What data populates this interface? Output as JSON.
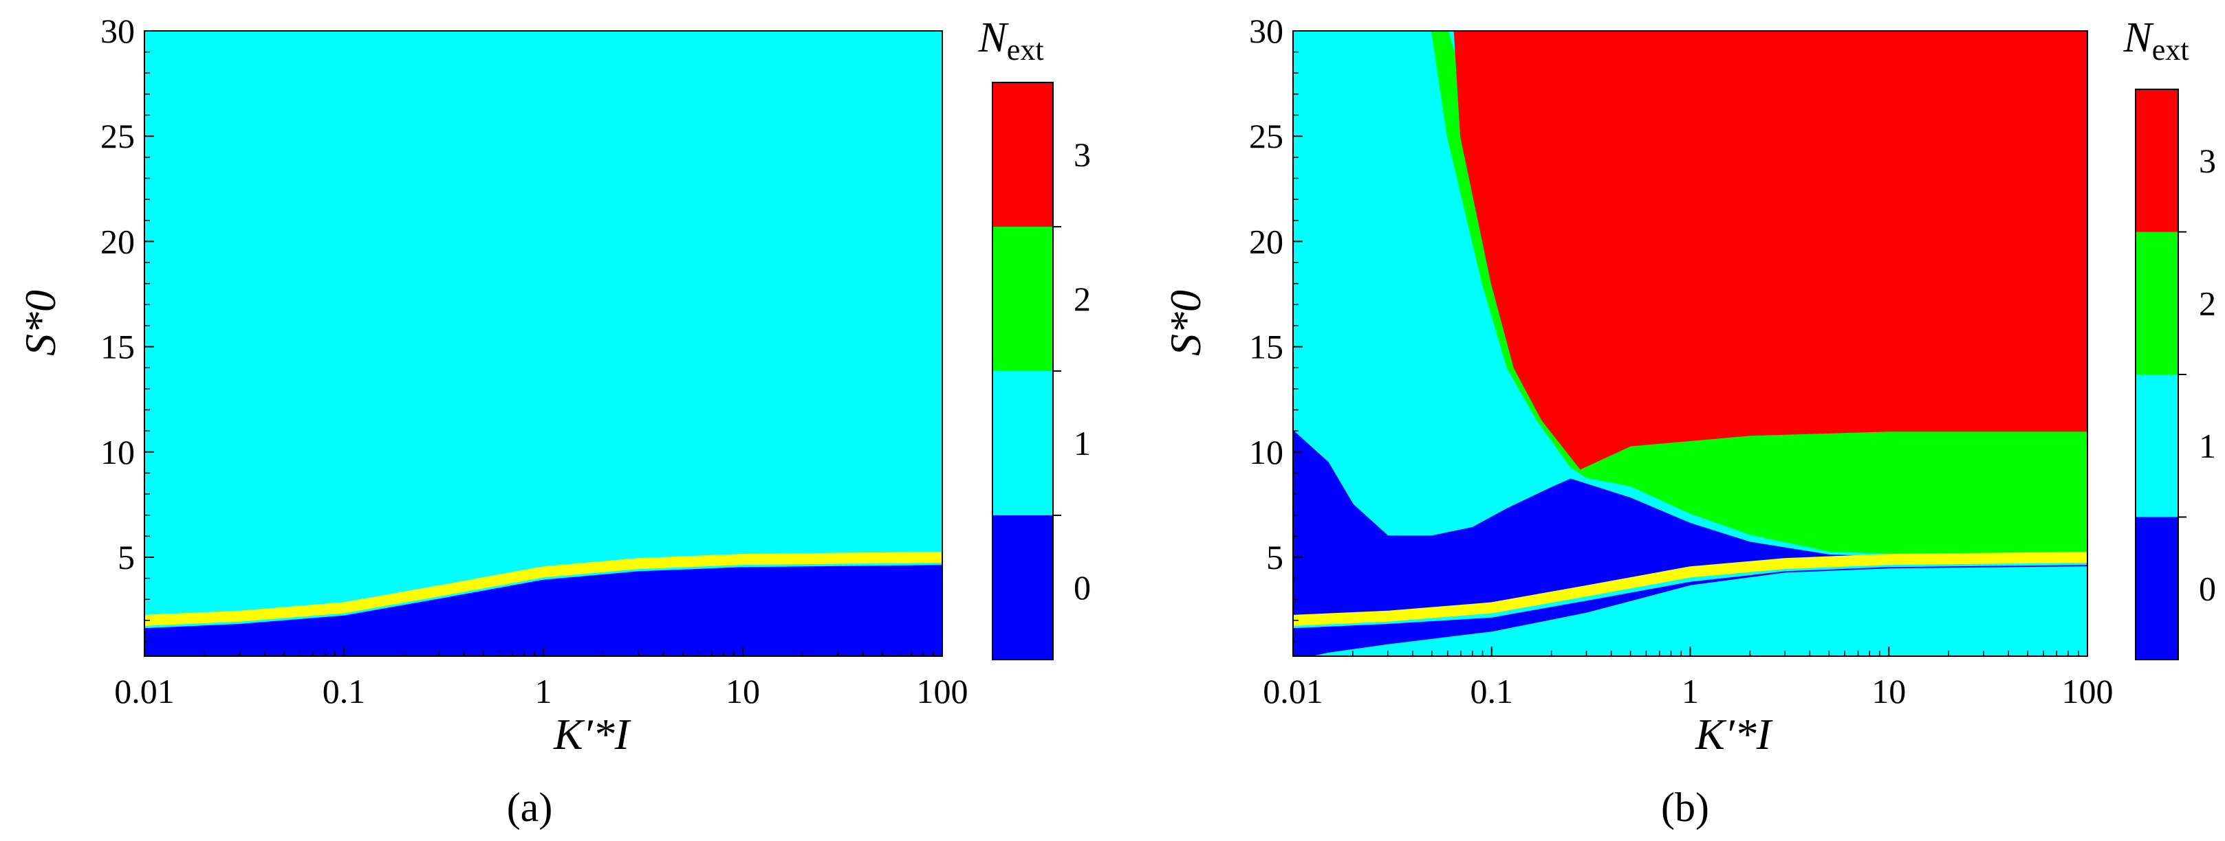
{
  "chart_data": [
    {
      "type": "heatmap",
      "panel_label": "(a)",
      "x_ticks": [
        "0.01",
        "0.1",
        "1",
        "10",
        "100"
      ],
      "y_ticks": [
        "5",
        "10",
        "15",
        "20",
        "25",
        "30"
      ],
      "x_scale": "log",
      "xlim": [
        0.01,
        100
      ],
      "ylim": [
        0.3,
        30
      ],
      "xlabel": "K′*I",
      "ylabel": "S*0",
      "colorbar": {
        "title": "Next",
        "levels": [
          "0",
          "1",
          "2",
          "3"
        ]
      },
      "background_level": 1,
      "regions": [
        {
          "level": 0,
          "polygon": [
            [
              0.01,
              0.3
            ],
            [
              0.01,
              1.6
            ],
            [
              0.03,
              1.8
            ],
            [
              0.1,
              2.2
            ],
            [
              0.3,
              3.0
            ],
            [
              1,
              3.9
            ],
            [
              3,
              4.3
            ],
            [
              10,
              4.5
            ],
            [
              100,
              4.6
            ],
            [
              100,
              0.3
            ]
          ]
        }
      ],
      "boundary_curve": {
        "color": "yellow",
        "points": [
          [
            0.01,
            2.0
          ],
          [
            0.03,
            2.2
          ],
          [
            0.1,
            2.6
          ],
          [
            0.3,
            3.4
          ],
          [
            1,
            4.3
          ],
          [
            3,
            4.7
          ],
          [
            10,
            4.9
          ],
          [
            100,
            5.0
          ]
        ]
      }
    },
    {
      "type": "heatmap",
      "panel_label": "(b)",
      "x_ticks": [
        "0.01",
        "0.1",
        "1",
        "10",
        "100"
      ],
      "y_ticks": [
        "5",
        "10",
        "15",
        "20",
        "25",
        "30"
      ],
      "x_scale": "log",
      "xlim": [
        0.01,
        100
      ],
      "ylim": [
        0.3,
        30
      ],
      "xlabel": "K′*I",
      "ylabel": "S*0",
      "colorbar": {
        "title": "Next",
        "levels": [
          "0",
          "1",
          "2",
          "3"
        ]
      },
      "background_level": 1,
      "regions": [
        {
          "level": 2,
          "polygon": [
            [
              0.05,
              30
            ],
            [
              0.06,
              25
            ],
            [
              0.09,
              18
            ],
            [
              0.12,
              14
            ],
            [
              0.17,
              11.5
            ],
            [
              0.25,
              9.3
            ],
            [
              0.3,
              8.8
            ],
            [
              0.5,
              8.4
            ],
            [
              1,
              7.1
            ],
            [
              2,
              6.1
            ],
            [
              5,
              5.3
            ],
            [
              10,
              5.2
            ],
            [
              100,
              5.2
            ],
            [
              100,
              11
            ],
            [
              10,
              11
            ],
            [
              2,
              10.8
            ],
            [
              0.5,
              10.3
            ],
            [
              0.28,
              9.3
            ],
            [
              0.06,
              30
            ]
          ]
        },
        {
          "level": 3,
          "polygon": [
            [
              0.055,
              30
            ],
            [
              100,
              30
            ],
            [
              100,
              11
            ],
            [
              10,
              11
            ],
            [
              2,
              10.8
            ],
            [
              0.5,
              10.3
            ],
            [
              0.28,
              9.2
            ],
            [
              0.18,
              11.5
            ],
            [
              0.13,
              14
            ],
            [
              0.1,
              18
            ],
            [
              0.07,
              25
            ],
            [
              0.065,
              30
            ]
          ]
        },
        {
          "level": 0,
          "polygon": [
            [
              0.01,
              1.8
            ],
            [
              0.01,
              11
            ],
            [
              0.015,
              9.5
            ],
            [
              0.02,
              7.5
            ],
            [
              0.03,
              6.0
            ],
            [
              0.05,
              6.0
            ],
            [
              0.08,
              6.4
            ],
            [
              0.12,
              7.3
            ],
            [
              0.2,
              8.3
            ],
            [
              0.25,
              8.7
            ],
            [
              0.5,
              7.8
            ],
            [
              1,
              6.6
            ],
            [
              2,
              5.7
            ],
            [
              5,
              5.1
            ],
            [
              10,
              5.0
            ],
            [
              5,
              4.9
            ],
            [
              2,
              4.6
            ],
            [
              1,
              4.3
            ],
            [
              0.3,
              3.4
            ],
            [
              0.1,
              2.6
            ],
            [
              0.03,
              2.2
            ],
            [
              0.01,
              2.0
            ]
          ]
        },
        {
          "level": 0,
          "polygon": [
            [
              0.01,
              0.3
            ],
            [
              0.01,
              1.6
            ],
            [
              0.03,
              1.8
            ],
            [
              0.1,
              2.1
            ],
            [
              0.3,
              2.9
            ],
            [
              1,
              3.8
            ],
            [
              3,
              4.3
            ],
            [
              10,
              4.5
            ],
            [
              100,
              4.6
            ],
            [
              100,
              4.6
            ],
            [
              10,
              4.5
            ],
            [
              3,
              4.3
            ],
            [
              1,
              3.7
            ],
            [
              0.3,
              2.4
            ],
            [
              0.1,
              1.5
            ],
            [
              0.03,
              0.9
            ],
            [
              0.015,
              0.5
            ],
            [
              0.012,
              0.3
            ]
          ]
        }
      ],
      "boundary_curve": {
        "color": "yellow",
        "points": [
          [
            0.01,
            2.0
          ],
          [
            0.03,
            2.2
          ],
          [
            0.1,
            2.6
          ],
          [
            0.3,
            3.4
          ],
          [
            1,
            4.3
          ],
          [
            3,
            4.7
          ],
          [
            10,
            4.9
          ],
          [
            100,
            5.0
          ]
        ]
      }
    }
  ],
  "colors": {
    "level0": "#0000ff",
    "level1": "#00ffff",
    "level2": "#00ff00",
    "level3": "#ff0000",
    "boundary": "#ffff00"
  }
}
